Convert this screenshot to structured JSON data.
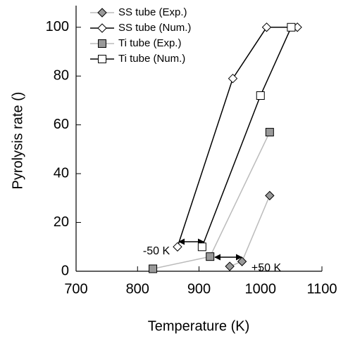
{
  "chart_data": {
    "type": "line",
    "xlabel": "Temperature (K)",
    "ylabel": "Pyrolysis rate ()",
    "xlim": [
      700,
      1100
    ],
    "xticks": [
      700,
      800,
      900,
      1000,
      1100
    ],
    "ylim": [
      0,
      108
    ],
    "yticks": [
      0,
      20,
      40,
      60,
      80,
      100
    ],
    "legend": "upper left",
    "series": [
      {
        "name": "SS tube (Exp.)",
        "color": "#bbbbbb",
        "marker": "diamond",
        "marker_fill": "#999999",
        "x": [
          950,
          970,
          1015
        ],
        "values": [
          2,
          4,
          31
        ]
      },
      {
        "name": "SS tube (Num.)",
        "color": "#000000",
        "marker": "diamond",
        "marker_fill": "#ffffff",
        "x": [
          865,
          955,
          1010,
          1060
        ],
        "values": [
          10,
          79,
          100,
          100
        ]
      },
      {
        "name": "Ti tube (Exp.)",
        "color": "#bbbbbb",
        "marker": "square",
        "marker_fill": "#999999",
        "x": [
          825,
          918,
          1015
        ],
        "values": [
          1,
          6,
          57
        ]
      },
      {
        "name": "Ti tube (Num.)",
        "color": "#000000",
        "marker": "square",
        "marker_fill": "#ffffff",
        "x": [
          905,
          1000,
          1050
        ],
        "values": [
          10,
          72,
          100
        ]
      }
    ],
    "annotations": [
      "-50 K",
      "+50 K"
    ]
  }
}
